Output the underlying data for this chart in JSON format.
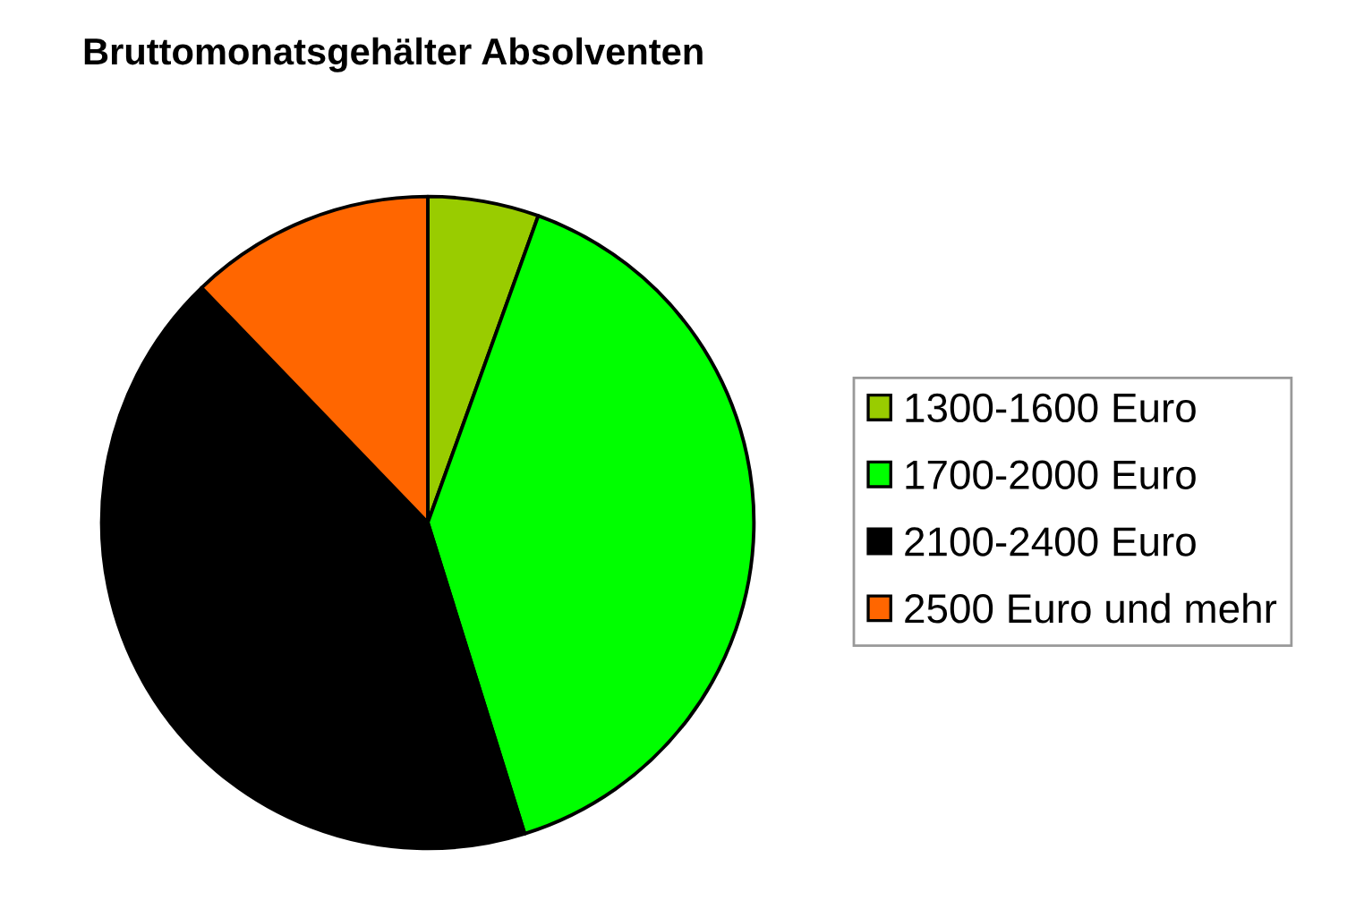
{
  "chart_data": {
    "type": "pie",
    "title": "Bruttomonatsgehälter Absolventen",
    "categories": [
      "1300-1600 Euro",
      "1700-2000 Euro",
      "2100-2400 Euro",
      "2500 Euro und mehr"
    ],
    "values": [
      5.5,
      39.7,
      42.6,
      12.2
    ],
    "colors": [
      "#99cc00",
      "#00ff00",
      "#000000",
      "#ff6600"
    ],
    "legend": "right"
  }
}
